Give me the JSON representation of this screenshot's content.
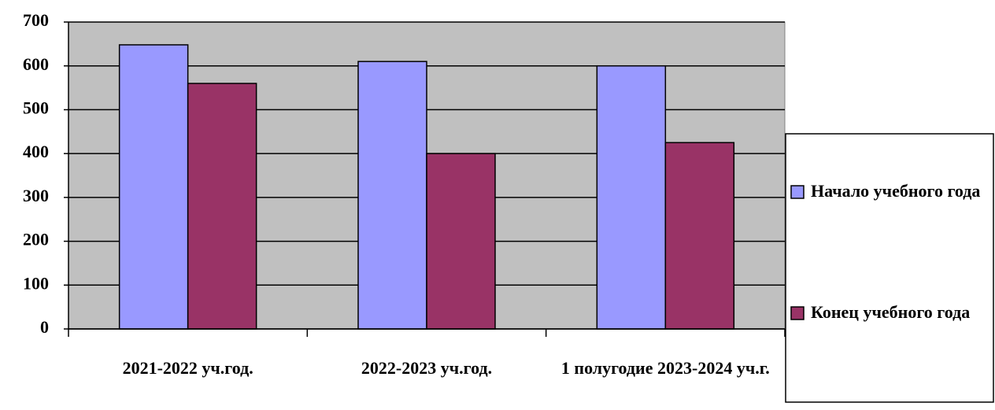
{
  "chart_data": {
    "type": "bar",
    "categories": [
      "2021-2022 уч.год.",
      "2022-2023 уч.год.",
      "1 полугодие 2023-2024 уч.г."
    ],
    "series": [
      {
        "name": "Начало учебного года",
        "color": "#9999ff",
        "values": [
          648,
          610,
          600
        ]
      },
      {
        "name": "Конец учебного года",
        "color": "#993366",
        "values": [
          560,
          400,
          425
        ]
      }
    ],
    "ylim": [
      0,
      700
    ],
    "yticks": [
      0,
      100,
      200,
      300,
      400,
      500,
      600,
      700
    ],
    "grid": true,
    "plot_background": "#c0c0c0",
    "legend": "right"
  }
}
